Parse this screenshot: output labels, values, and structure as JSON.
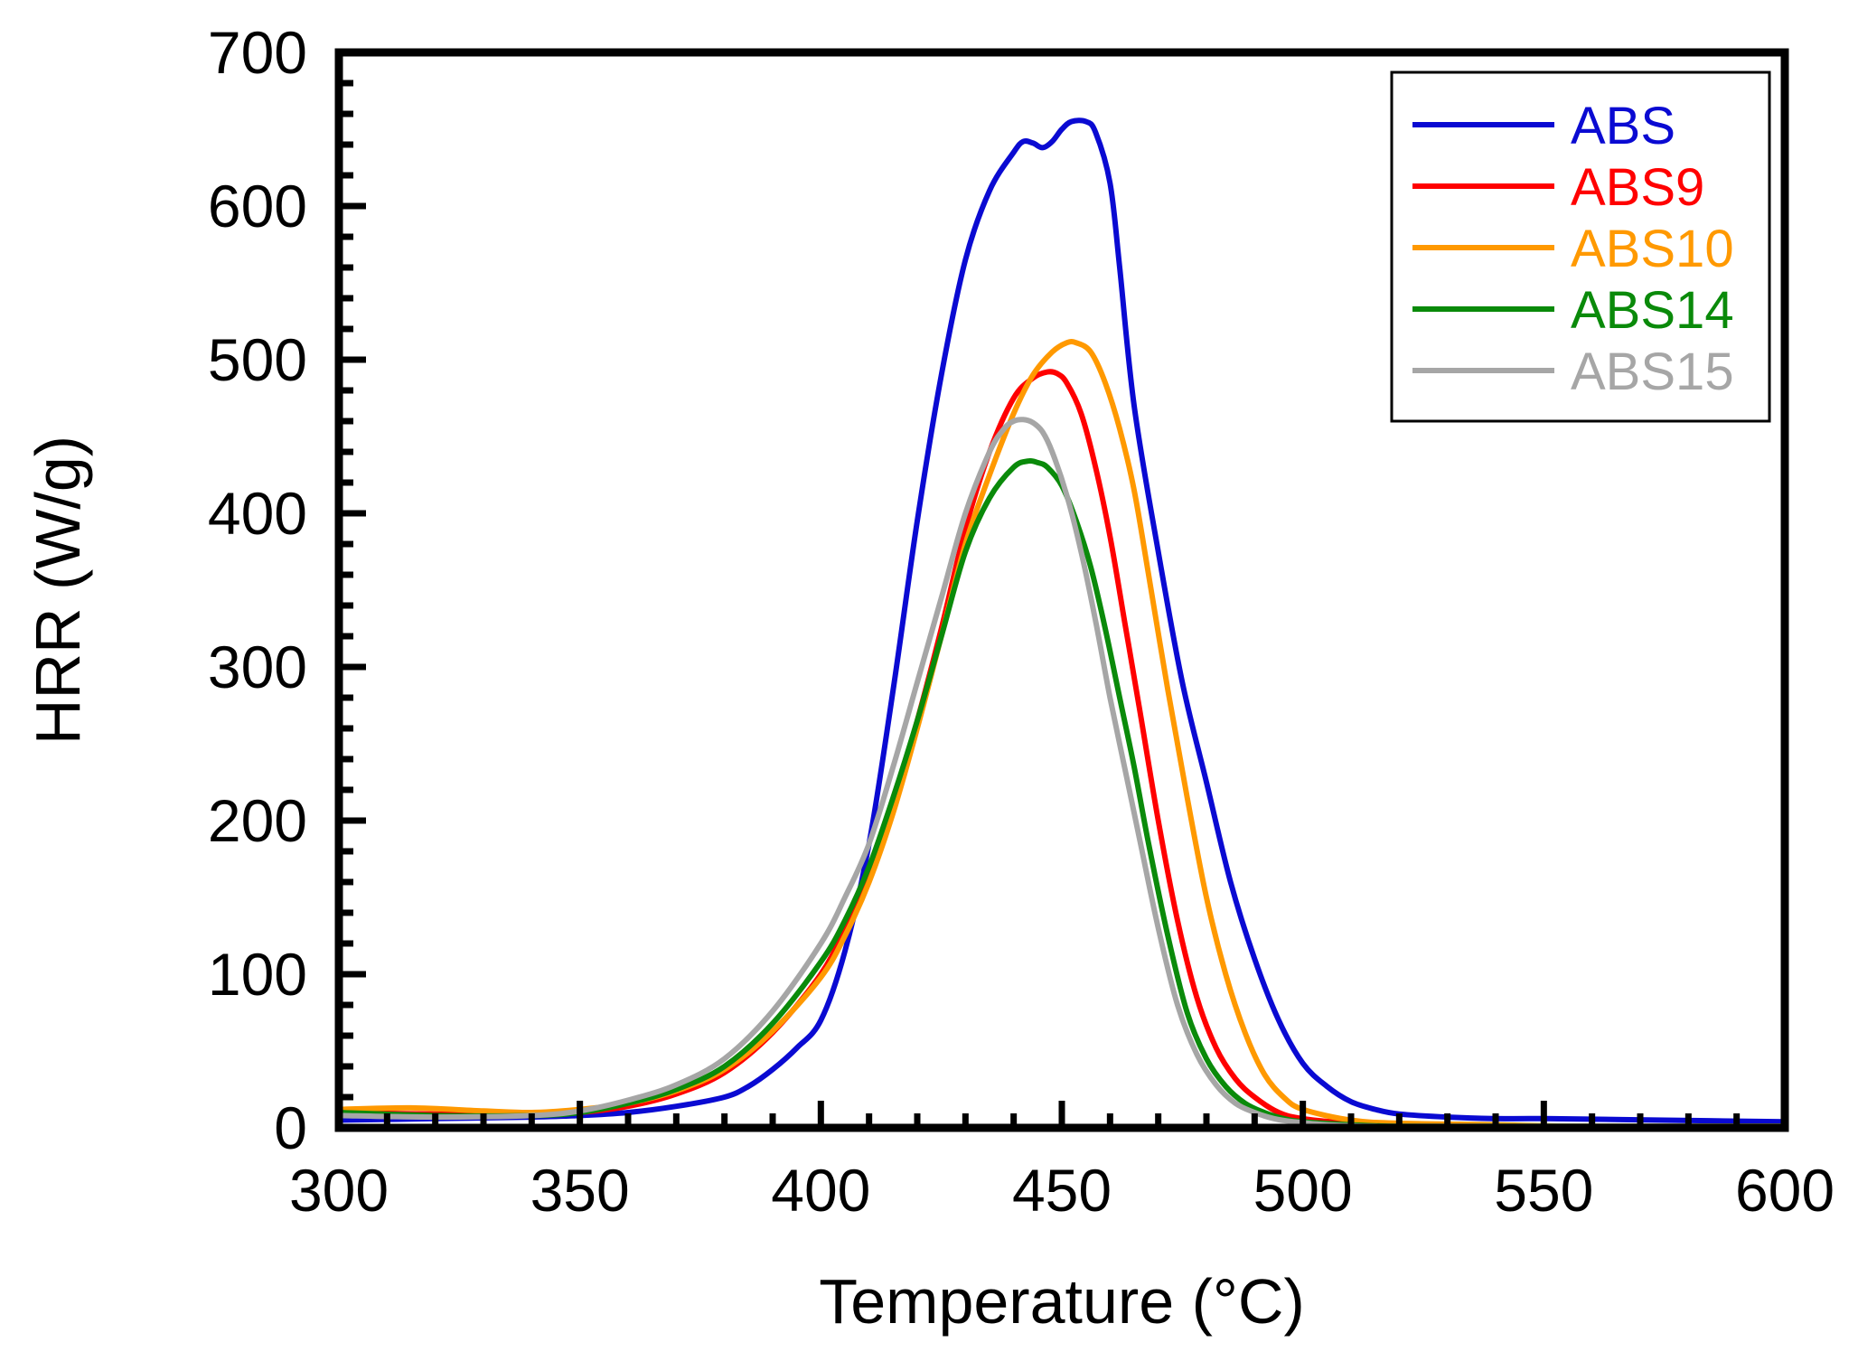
{
  "chart_data": {
    "type": "line",
    "title": "",
    "xlabel": "Temperature (°C)",
    "ylabel": "HRR (W/g)",
    "xlim": [
      300,
      600
    ],
    "ylim": [
      0,
      700
    ],
    "xticks": [
      300,
      350,
      400,
      450,
      500,
      550,
      600
    ],
    "yticks": [
      0,
      100,
      200,
      300,
      400,
      500,
      600,
      700
    ],
    "legend_position": "top-right",
    "grid": false,
    "series": [
      {
        "name": "ABS",
        "color": "#0a0ad2",
        "x": [
          300,
          320,
          340,
          350,
          360,
          370,
          380,
          385,
          390,
          395,
          400,
          405,
          410,
          415,
          420,
          425,
          430,
          435,
          440,
          442,
          444,
          446,
          448,
          450,
          452,
          455,
          457,
          460,
          462,
          465,
          470,
          475,
          480,
          485,
          490,
          495,
          500,
          505,
          510,
          515,
          520,
          530,
          540,
          550,
          575,
          600
        ],
        "y": [
          5,
          6,
          7,
          8,
          10,
          14,
          20,
          27,
          38,
          52,
          70,
          115,
          185,
          285,
          395,
          490,
          565,
          610,
          635,
          642,
          641,
          638,
          642,
          650,
          655,
          655,
          648,
          615,
          560,
          470,
          375,
          290,
          225,
          160,
          110,
          70,
          42,
          27,
          17,
          12,
          9,
          7,
          6,
          6,
          5,
          4
        ]
      },
      {
        "name": "ABS9",
        "color": "#ff0000",
        "x": [
          300,
          320,
          340,
          350,
          360,
          370,
          380,
          390,
          400,
          405,
          410,
          415,
          420,
          425,
          430,
          435,
          440,
          444,
          447,
          449,
          451,
          454,
          457,
          460,
          463,
          466,
          470,
          474,
          478,
          482,
          486,
          490,
          495,
          500,
          510,
          520,
          540,
          560,
          600
        ],
        "y": [
          10,
          9,
          9,
          10,
          14,
          22,
          36,
          62,
          100,
          130,
          165,
          210,
          265,
          325,
          390,
          440,
          475,
          488,
          492,
          491,
          485,
          465,
          430,
          385,
          330,
          275,
          200,
          135,
          85,
          52,
          32,
          20,
          10,
          6,
          3,
          2,
          1,
          1,
          1
        ]
      },
      {
        "name": "ABS10",
        "color": "#ff9900",
        "x": [
          300,
          315,
          330,
          340,
          350,
          360,
          370,
          380,
          390,
          400,
          405,
          410,
          415,
          420,
          425,
          430,
          435,
          440,
          444,
          448,
          451,
          453,
          456,
          459,
          462,
          465,
          468,
          472,
          476,
          480,
          484,
          488,
          492,
          496,
          500,
          510,
          520,
          540,
          560,
          600
        ],
        "y": [
          12,
          13,
          11,
          10,
          12,
          16,
          24,
          38,
          63,
          98,
          125,
          160,
          205,
          260,
          320,
          380,
          425,
          465,
          490,
          505,
          511,
          511,
          505,
          485,
          455,
          415,
          360,
          285,
          215,
          150,
          100,
          62,
          35,
          20,
          12,
          5,
          3,
          2,
          1,
          1
        ]
      },
      {
        "name": "ABS14",
        "color": "#0a8a0a",
        "x": [
          300,
          320,
          340,
          350,
          360,
          370,
          380,
          390,
          400,
          405,
          410,
          415,
          420,
          425,
          430,
          435,
          440,
          443,
          445,
          447,
          450,
          453,
          456,
          459,
          462,
          465,
          468,
          472,
          476,
          480,
          484,
          488,
          492,
          496,
          500,
          510,
          520,
          540,
          560,
          600
        ],
        "y": [
          10,
          8,
          8,
          10,
          16,
          25,
          40,
          68,
          108,
          135,
          170,
          215,
          265,
          320,
          375,
          410,
          430,
          434,
          433,
          430,
          418,
          395,
          365,
          325,
          280,
          235,
          185,
          125,
          75,
          45,
          27,
          16,
          10,
          6,
          4,
          2,
          1,
          1,
          1,
          1
        ]
      },
      {
        "name": "ABS15",
        "color": "#a6a6a6",
        "x": [
          300,
          320,
          340,
          350,
          360,
          370,
          380,
          390,
          400,
          405,
          410,
          415,
          420,
          425,
          430,
          435,
          438,
          440,
          442,
          444,
          446,
          448,
          451,
          454,
          457,
          460,
          463,
          466,
          470,
          474,
          478,
          482,
          486,
          490,
          494,
          498,
          505,
          515,
          540,
          600
        ],
        "y": [
          8,
          7,
          8,
          11,
          18,
          28,
          45,
          76,
          120,
          150,
          185,
          235,
          290,
          345,
          400,
          440,
          455,
          460,
          461,
          459,
          453,
          440,
          412,
          375,
          330,
          280,
          235,
          190,
          130,
          80,
          48,
          28,
          16,
          10,
          6,
          4,
          2,
          1,
          1,
          1
        ]
      }
    ]
  }
}
